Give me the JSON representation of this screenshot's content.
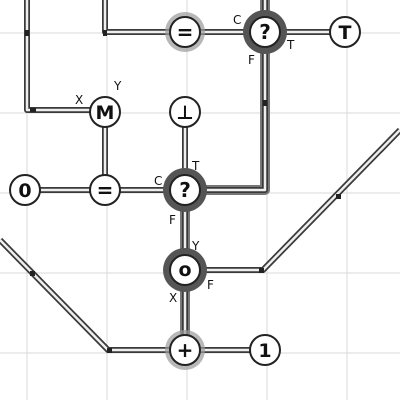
{
  "diagram": {
    "title": "",
    "nodes": [
      {
        "id": "eq_top",
        "symbol": "=",
        "kind": "equals",
        "highlight": "gray"
      },
      {
        "id": "cond_top",
        "symbol": "?",
        "kind": "conditional",
        "highlight": "dark"
      },
      {
        "id": "t_top",
        "symbol": "T",
        "kind": "true-terminal"
      },
      {
        "id": "m_node",
        "symbol": "M",
        "kind": "merge"
      },
      {
        "id": "bottom_node",
        "symbol": "⊥",
        "kind": "bottom-terminal"
      },
      {
        "id": "zero_left",
        "symbol": "0",
        "kind": "constant"
      },
      {
        "id": "eq_mid",
        "symbol": "=",
        "kind": "equals"
      },
      {
        "id": "cond_mid",
        "symbol": "?",
        "kind": "conditional",
        "highlight": "dark"
      },
      {
        "id": "compose_node",
        "symbol": "o",
        "kind": "compose",
        "highlight": "dark"
      },
      {
        "id": "plus_node",
        "symbol": "+",
        "kind": "add",
        "highlight": "gray"
      },
      {
        "id": "one_node",
        "symbol": "1",
        "kind": "constant"
      }
    ],
    "port_labels": {
      "cond_top_c": "C",
      "cond_top_t": "T",
      "cond_top_f": "F",
      "m_x": "X",
      "m_y": "Y",
      "cond_mid_c": "C",
      "cond_mid_t": "T",
      "cond_mid_f": "F",
      "compose_y": "Y",
      "compose_x": "X",
      "compose_f": "F"
    },
    "colors": {
      "background": "#ffffff",
      "grid": "#d8d8d8",
      "wire_outer": "#3a3a3a",
      "wire_inner": "#eeeeee",
      "active_wire": "#777777",
      "node_fill": "#ffffff",
      "node_stroke": "#222222",
      "halo_dark": "#555555",
      "halo_gray": "#9a9a9a"
    }
  }
}
